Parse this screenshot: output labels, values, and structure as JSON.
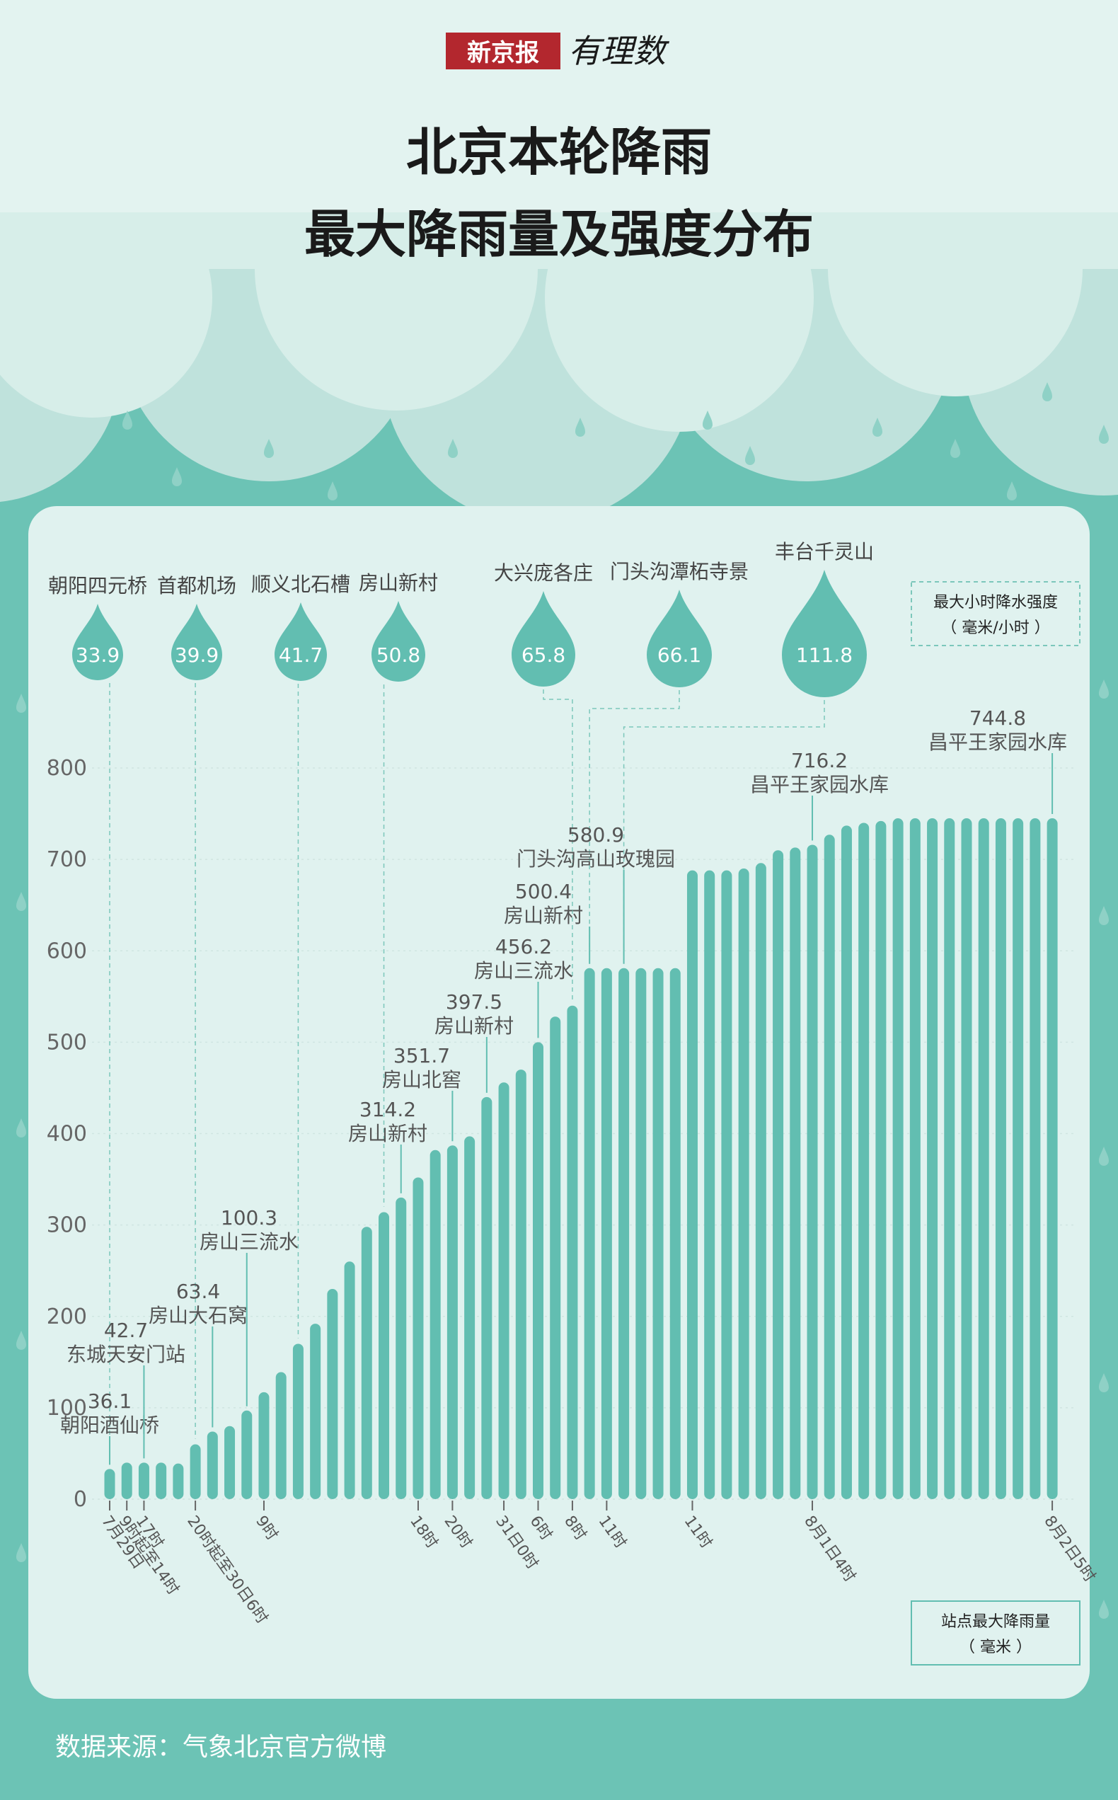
{
  "header": {
    "brand": "新京报",
    "brand_sub": "有理数",
    "title_line1": "北京本轮降雨",
    "title_line2": "最大降雨量及强度分布"
  },
  "legend": {
    "intensity_line1": "最大小时降水强度",
    "intensity_line2": "（ 毫米/小时 ）",
    "rain_line1": "站点最大降雨量",
    "rain_line2": "（ 毫米 ）"
  },
  "footer": {
    "source": "数据来源：气象北京官方微博"
  },
  "colors": {
    "bar": "#62beb1",
    "panel": "#e0f2ef",
    "background": "#6cc3b5",
    "cloud_light": "#cde9e4",
    "cloud_dark": "#bfe2dc"
  },
  "chart_data": {
    "type": "bar",
    "ylim": [
      0,
      800
    ],
    "yticks": [
      0,
      100,
      200,
      300,
      400,
      500,
      600,
      700,
      800
    ],
    "bar_count": 56,
    "values": [
      33,
      40,
      40,
      40,
      39,
      60,
      74,
      80,
      97,
      117,
      139,
      170,
      192,
      230,
      260,
      298,
      314,
      330,
      352,
      382,
      387,
      397,
      440,
      456,
      470,
      500,
      528,
      540,
      581,
      581,
      581,
      581,
      581,
      581,
      688,
      688,
      688,
      690,
      696,
      710,
      713,
      716,
      727,
      737,
      740,
      742,
      745,
      745,
      745,
      745,
      745,
      745,
      745,
      745,
      745,
      745
    ],
    "xticks": [
      {
        "bar": 0,
        "label": "7月29日"
      },
      {
        "bar": 1,
        "label": "9时起至14时"
      },
      {
        "bar": 2,
        "label": "17时"
      },
      {
        "bar": 5,
        "label": "20时起至30日6时"
      },
      {
        "bar": 9,
        "label": "9时"
      },
      {
        "bar": 18,
        "label": "18时"
      },
      {
        "bar": 20,
        "label": "20时"
      },
      {
        "bar": 23,
        "label": "31日0时"
      },
      {
        "bar": 25,
        "label": "6时"
      },
      {
        "bar": 27,
        "label": "8时"
      },
      {
        "bar": 29,
        "label": "11时"
      },
      {
        "bar": 34,
        "label": "11时"
      },
      {
        "bar": 41,
        "label": "8月1日4时"
      },
      {
        "bar": 55,
        "label": "8月2日5时"
      }
    ],
    "annotations": [
      {
        "bar": 0,
        "value": "36.1",
        "station": "朝阳酒仙桥"
      },
      {
        "bar": 2,
        "value": "42.7",
        "station": "东城天安门站"
      },
      {
        "bar": 6,
        "value": "63.4",
        "station": "房山大石窝"
      },
      {
        "bar": 8,
        "value": "100.3",
        "station": "房山三流水"
      },
      {
        "bar": 17,
        "value": "314.2",
        "station": "房山新村"
      },
      {
        "bar": 20,
        "value": "351.7",
        "station": "房山北窖"
      },
      {
        "bar": 22,
        "value": "397.5",
        "station": "房山新村"
      },
      {
        "bar": 25,
        "value": "456.2",
        "station": "房山三流水"
      },
      {
        "bar": 28,
        "value": "500.4",
        "station": "房山新村"
      },
      {
        "bar": 30,
        "value": "580.9",
        "station": "门头沟高山玫瑰园"
      },
      {
        "bar": 41,
        "value": "716.2",
        "station": "昌平王家园水库"
      },
      {
        "bar": 55,
        "value": "744.8",
        "station": "昌平王家园水库"
      }
    ],
    "intensity": [
      {
        "bar": 0,
        "value": "33.9",
        "station": "朝阳四元桥"
      },
      {
        "bar": 5,
        "value": "39.9",
        "station": "首都机场"
      },
      {
        "bar": 11,
        "value": "41.7",
        "station": "顺义北石槽"
      },
      {
        "bar": 16,
        "value": "50.8",
        "station": "房山新村"
      },
      {
        "bar": 27,
        "value": "65.8",
        "station": "大兴庞各庄"
      },
      {
        "bar": 28,
        "value": "66.1",
        "station": "门头沟潭柘寺景"
      },
      {
        "bar": 30,
        "value": "111.8",
        "station": "丰台千灵山"
      }
    ]
  }
}
